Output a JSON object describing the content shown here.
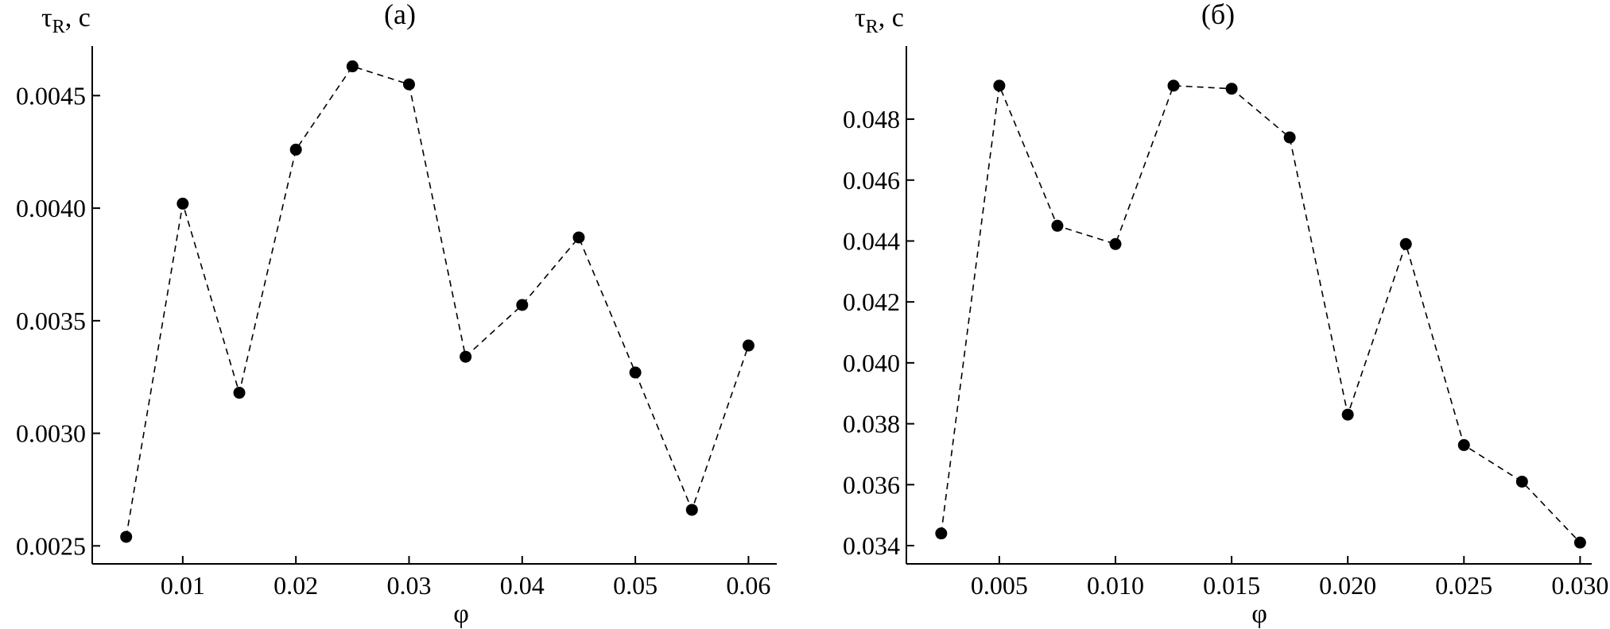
{
  "chart_data": [
    {
      "type": "line",
      "title": "(a)",
      "xlabel": "φ",
      "ylabel": {
        "main": "τ",
        "sub": "R",
        "unit": ", c"
      },
      "xlim": [
        0.002,
        0.0625
      ],
      "ylim": [
        0.00242,
        0.00472
      ],
      "xticks": [
        0.01,
        0.02,
        0.03,
        0.04,
        0.05,
        0.06
      ],
      "xtick_labels": [
        "0.01",
        "0.02",
        "0.03",
        "0.04",
        "0.05",
        "0.06"
      ],
      "yticks": [
        0.0025,
        0.003,
        0.0035,
        0.004,
        0.0045
      ],
      "ytick_labels": [
        "0.0025",
        "0.0030",
        "0.0035",
        "0.0040",
        "0.0045"
      ],
      "grid": false,
      "series": [
        {
          "marker": "filled-circle",
          "line_style": "dashed",
          "color": "#000000",
          "x": [
            0.005,
            0.01,
            0.015,
            0.02,
            0.025,
            0.03,
            0.035,
            0.04,
            0.045,
            0.05,
            0.055,
            0.06
          ],
          "y": [
            0.00254,
            0.00402,
            0.00318,
            0.00426,
            0.00463,
            0.00455,
            0.00334,
            0.00357,
            0.00387,
            0.00327,
            0.00266,
            0.00339
          ]
        }
      ]
    },
    {
      "type": "line",
      "title": "(б)",
      "xlabel": "φ",
      "ylabel": {
        "main": "τ",
        "sub": "R",
        "unit": ", c"
      },
      "xlim": [
        0.001,
        0.0305
      ],
      "ylim": [
        0.0334,
        0.0504
      ],
      "xticks": [
        0.005,
        0.01,
        0.015,
        0.02,
        0.025,
        0.03
      ],
      "xtick_labels": [
        "0.005",
        "0.010",
        "0.015",
        "0.020",
        "0.025",
        "0.030"
      ],
      "yticks": [
        0.034,
        0.036,
        0.038,
        0.04,
        0.042,
        0.044,
        0.046,
        0.048
      ],
      "ytick_labels": [
        "0.034",
        "0.036",
        "0.038",
        "0.040",
        "0.042",
        "0.044",
        "0.046",
        "0.048"
      ],
      "grid": false,
      "series": [
        {
          "marker": "filled-circle",
          "line_style": "dashed",
          "color": "#000000",
          "x": [
            0.0025,
            0.005,
            0.0075,
            0.01,
            0.0125,
            0.015,
            0.0175,
            0.02,
            0.0225,
            0.025,
            0.0275,
            0.03
          ],
          "y": [
            0.0344,
            0.0491,
            0.0445,
            0.0439,
            0.0491,
            0.049,
            0.0474,
            0.0383,
            0.0439,
            0.0373,
            0.0361,
            0.0341
          ]
        }
      ]
    }
  ]
}
